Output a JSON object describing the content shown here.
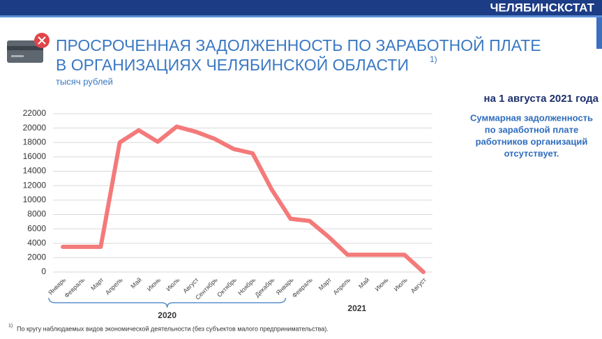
{
  "header": {
    "org": "ЧЕЛЯБИНСКСТАТ"
  },
  "chart_data": {
    "type": "line",
    "title": [
      "ПРОСРОЧЕННАЯ ЗАДОЛЖЕННОСТЬ ПО ЗАРАБОТНОЙ ПЛАТЕ",
      "В ОРГАНИЗАЦИЯХ ЧЕЛЯБИНСКОЙ ОБЛАСТИ"
    ],
    "title_note": "1)",
    "subtitle": "тысяч рублей",
    "categories": [
      "Январь",
      "Февраль",
      "Март",
      "Апрель",
      "Май",
      "Июнь",
      "Июль",
      "Август",
      "Сентябрь",
      "Октябрь",
      "Ноябрь",
      "Декабрь",
      "Январь",
      "Февраль",
      "Март",
      "Апрель",
      "Май",
      "Июнь",
      "Июль",
      "Август"
    ],
    "year_labels": [
      "2020",
      "2021"
    ],
    "series": [
      {
        "color": "#f47a7a",
        "values": [
          3500,
          3500,
          3500,
          18000,
          19700,
          18100,
          20200,
          19500,
          18500,
          17100,
          16500,
          11500,
          7400,
          7100,
          4900,
          2400,
          2400,
          2400,
          2400,
          0
        ]
      }
    ],
    "ylim": [
      0,
      22000
    ],
    "yticks": [
      0,
      2000,
      4000,
      6000,
      8000,
      10000,
      12000,
      14000,
      16000,
      18000,
      20000,
      22000
    ],
    "grid": true
  },
  "side_note": {
    "date": "на 1 августа 2021 года",
    "text": [
      "Суммарная задолженность",
      "по заработной плате",
      "работников организаций",
      "отсутствует."
    ]
  },
  "footnote": {
    "marker": "1)",
    "text": "По кругу наблюдаемых видов экономической деятельности (без субъектов  малого предпринимательства)."
  }
}
